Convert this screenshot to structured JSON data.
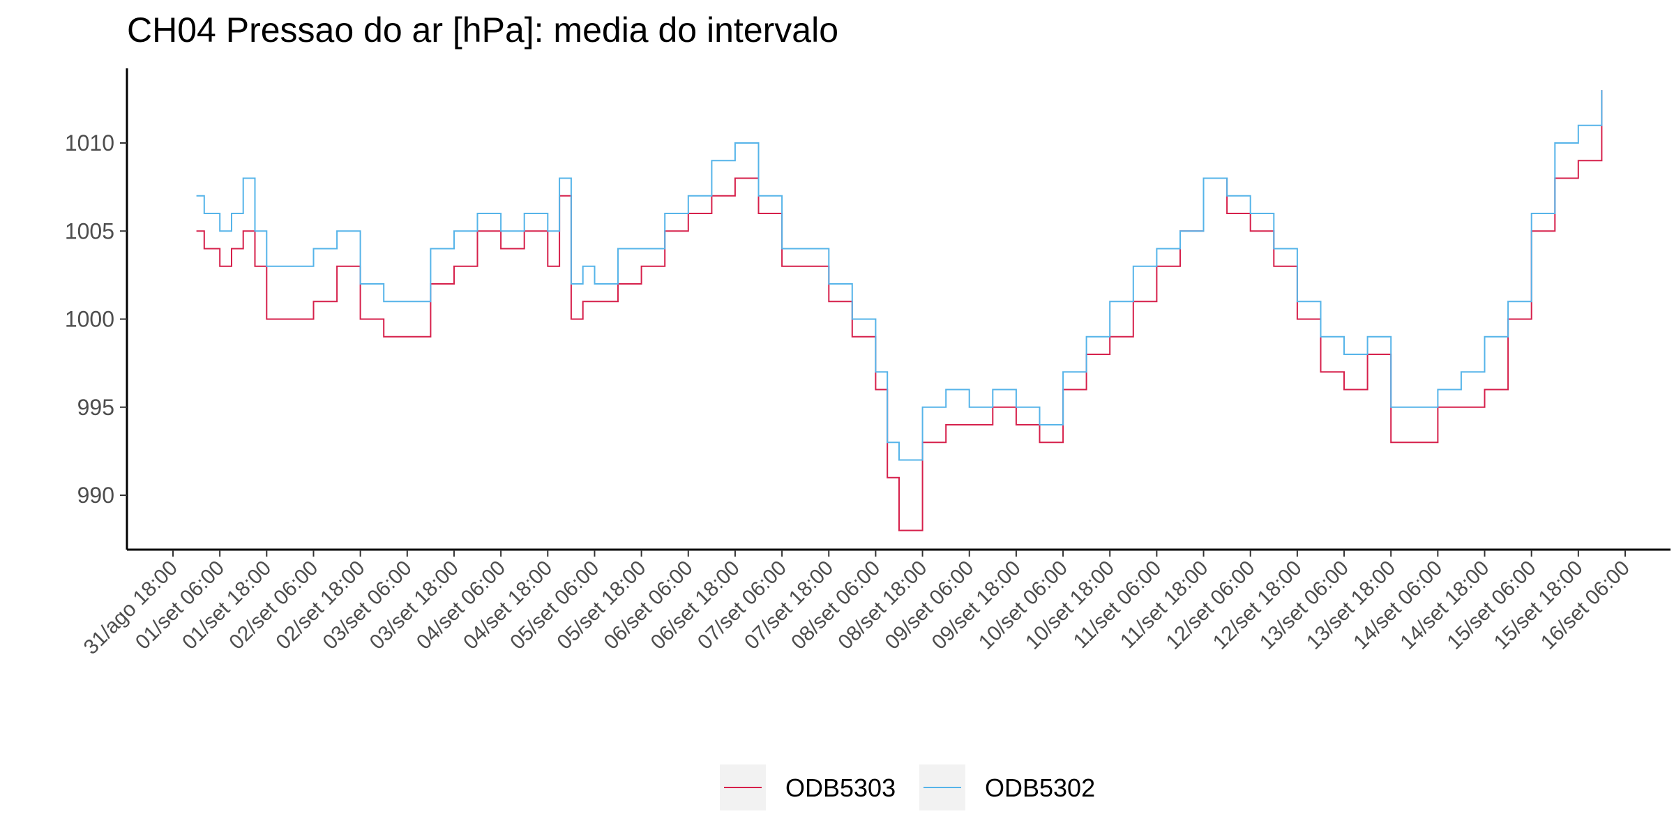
{
  "chart_data": {
    "type": "line",
    "title": "CH04 Pressao do ar [hPa]: media do intervalo",
    "xlabel": "",
    "ylabel": "",
    "x_range": [
      "31/ago 18:00",
      "16/set 06:00"
    ],
    "ylim": [
      987,
      1014
    ],
    "y_ticks": [
      990,
      995,
      1000,
      1005,
      1010
    ],
    "x_ticks": [
      "31/ago 18:00",
      "01/set 06:00",
      "01/set 18:00",
      "02/set 06:00",
      "02/set 18:00",
      "03/set 06:00",
      "03/set 18:00",
      "04/set 06:00",
      "04/set 18:00",
      "05/set 06:00",
      "05/set 18:00",
      "06/set 06:00",
      "06/set 18:00",
      "07/set 06:00",
      "07/set 18:00",
      "08/set 06:00",
      "08/set 18:00",
      "09/set 06:00",
      "09/set 18:00",
      "10/set 06:00",
      "10/set 18:00",
      "11/set 06:00",
      "11/set 18:00",
      "12/set 06:00",
      "12/set 18:00",
      "13/set 06:00",
      "13/set 18:00",
      "14/set 06:00",
      "14/set 18:00",
      "15/set 06:00",
      "15/set 18:00",
      "16/set 06:00"
    ],
    "grid": false,
    "legend_position": "bottom",
    "series": [
      {
        "name": "ODB5303",
        "color": "#d6204b",
        "x": [
          "01/set 00:00",
          "01/set 02:00",
          "01/set 06:00",
          "01/set 09:00",
          "01/set 12:00",
          "01/set 15:00",
          "01/set 18:00",
          "02/set 00:00",
          "02/set 06:00",
          "02/set 12:00",
          "02/set 18:00",
          "03/set 00:00",
          "03/set 06:00",
          "03/set 12:00",
          "03/set 18:00",
          "04/set 00:00",
          "04/set 06:00",
          "04/set 12:00",
          "04/set 18:00",
          "04/set 21:00",
          "05/set 00:00",
          "05/set 03:00",
          "05/set 06:00",
          "05/set 12:00",
          "05/set 18:00",
          "06/set 00:00",
          "06/set 06:00",
          "06/set 12:00",
          "06/set 18:00",
          "07/set 00:00",
          "07/set 06:00",
          "07/set 12:00",
          "07/set 18:00",
          "08/set 00:00",
          "08/set 06:00",
          "08/set 09:00",
          "08/set 12:00",
          "08/set 18:00",
          "09/set 00:00",
          "09/set 06:00",
          "09/set 12:00",
          "09/set 18:00",
          "10/set 00:00",
          "10/set 06:00",
          "10/set 12:00",
          "10/set 18:00",
          "11/set 00:00",
          "11/set 06:00",
          "11/set 12:00",
          "11/set 18:00",
          "12/set 00:00",
          "12/set 06:00",
          "12/set 12:00",
          "12/set 18:00",
          "13/set 00:00",
          "13/set 06:00",
          "13/set 12:00",
          "13/set 18:00",
          "14/set 00:00",
          "14/set 06:00",
          "14/set 12:00",
          "14/set 18:00",
          "15/set 00:00",
          "15/set 06:00",
          "15/set 12:00",
          "15/set 18:00",
          "16/set 00:00"
        ],
        "y": [
          1005,
          1004,
          1003,
          1004,
          1005,
          1003,
          1000,
          1000,
          1001,
          1003,
          1000,
          999,
          999,
          1002,
          1003,
          1005,
          1004,
          1005,
          1003,
          1007,
          1000,
          1001,
          1001,
          1002,
          1003,
          1005,
          1006,
          1007,
          1008,
          1006,
          1003,
          1003,
          1001,
          999,
          996,
          991,
          988,
          993,
          994,
          994,
          995,
          994,
          993,
          996,
          998,
          999,
          1001,
          1003,
          1005,
          1008,
          1006,
          1005,
          1003,
          1000,
          997,
          996,
          998,
          993,
          993,
          995,
          995,
          996,
          1000,
          1005,
          1008,
          1009,
          1013
        ]
      },
      {
        "name": "ODB5302",
        "color": "#56b4e9",
        "x": [
          "01/set 00:00",
          "01/set 02:00",
          "01/set 06:00",
          "01/set 09:00",
          "01/set 12:00",
          "01/set 15:00",
          "01/set 18:00",
          "02/set 00:00",
          "02/set 06:00",
          "02/set 12:00",
          "02/set 18:00",
          "03/set 00:00",
          "03/set 06:00",
          "03/set 12:00",
          "03/set 18:00",
          "04/set 00:00",
          "04/set 06:00",
          "04/set 12:00",
          "04/set 18:00",
          "04/set 21:00",
          "05/set 00:00",
          "05/set 03:00",
          "05/set 06:00",
          "05/set 12:00",
          "05/set 18:00",
          "06/set 00:00",
          "06/set 06:00",
          "06/set 12:00",
          "06/set 18:00",
          "07/set 00:00",
          "07/set 06:00",
          "07/set 12:00",
          "07/set 18:00",
          "08/set 00:00",
          "08/set 06:00",
          "08/set 09:00",
          "08/set 12:00",
          "08/set 18:00",
          "09/set 00:00",
          "09/set 06:00",
          "09/set 12:00",
          "09/set 18:00",
          "10/set 00:00",
          "10/set 06:00",
          "10/set 12:00",
          "10/set 18:00",
          "11/set 00:00",
          "11/set 06:00",
          "11/set 12:00",
          "11/set 18:00",
          "12/set 00:00",
          "12/set 06:00",
          "12/set 12:00",
          "12/set 18:00",
          "13/set 00:00",
          "13/set 06:00",
          "13/set 12:00",
          "13/set 18:00",
          "14/set 00:00",
          "14/set 06:00",
          "14/set 12:00",
          "14/set 18:00",
          "15/set 00:00",
          "15/set 06:00",
          "15/set 12:00",
          "15/set 18:00",
          "16/set 00:00"
        ],
        "y": [
          1007,
          1006,
          1005,
          1006,
          1008,
          1005,
          1003,
          1003,
          1004,
          1005,
          1002,
          1001,
          1001,
          1004,
          1005,
          1006,
          1005,
          1006,
          1005,
          1008,
          1002,
          1003,
          1002,
          1004,
          1004,
          1006,
          1007,
          1009,
          1010,
          1007,
          1004,
          1004,
          1002,
          1000,
          997,
          993,
          992,
          995,
          996,
          995,
          996,
          995,
          994,
          997,
          999,
          1001,
          1003,
          1004,
          1005,
          1008,
          1007,
          1006,
          1004,
          1001,
          999,
          998,
          999,
          995,
          995,
          996,
          997,
          999,
          1001,
          1006,
          1010,
          1011,
          1013
        ]
      }
    ]
  }
}
